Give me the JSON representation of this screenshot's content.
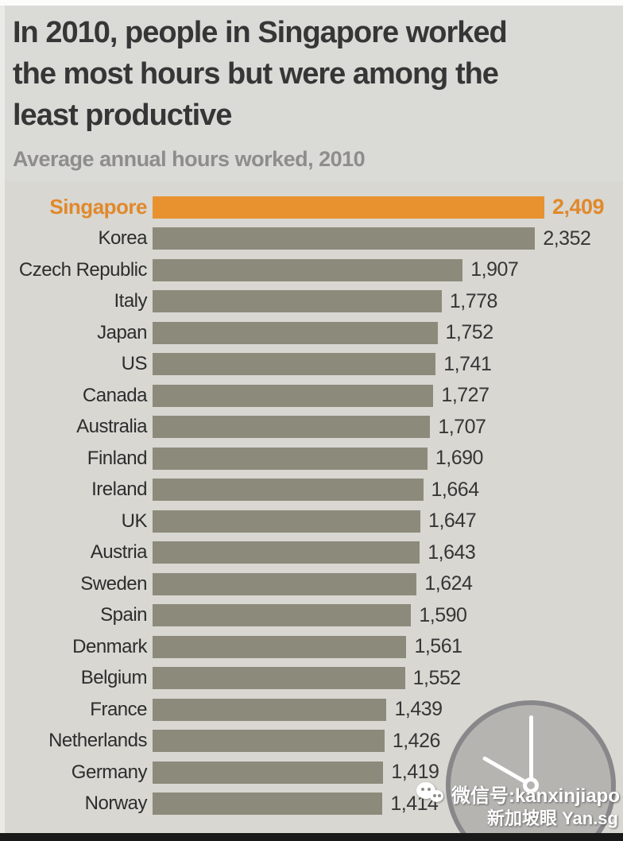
{
  "header": {
    "title_lines": [
      "In 2010, people in Singapore worked",
      "the most hours but were among the",
      "least productive"
    ],
    "subtitle": "Average annual hours worked, 2010"
  },
  "chart_data": {
    "type": "bar",
    "orientation": "horizontal",
    "title": "In 2010, people in Singapore worked the most hours but were among the least productive",
    "subtitle": "Average annual hours worked, 2010",
    "categories": [
      "Singapore",
      "Korea",
      "Czech Republic",
      "Italy",
      "Japan",
      "US",
      "Canada",
      "Australia",
      "Finland",
      "Ireland",
      "UK",
      "Austria",
      "Sweden",
      "Spain",
      "Denmark",
      "Belgium",
      "France",
      "Netherlands",
      "Germany",
      "Norway"
    ],
    "values": [
      2409,
      2352,
      1907,
      1778,
      1752,
      1741,
      1727,
      1707,
      1690,
      1664,
      1647,
      1643,
      1624,
      1590,
      1561,
      1552,
      1439,
      1426,
      1419,
      1414
    ],
    "value_labels": [
      "2,409",
      "2,352",
      "1,907",
      "1,778",
      "1,752",
      "1,741",
      "1,727",
      "1,707",
      "1,690",
      "1,664",
      "1,647",
      "1,643",
      "1,624",
      "1,590",
      "1,561",
      "1,552",
      "1,439",
      "1,426",
      "1,419",
      "1,414"
    ],
    "xlim": [
      0,
      2409
    ],
    "highlight_category": "Singapore",
    "highlight_color": "#e8912f",
    "bar_color": "#8c8b7b",
    "highlight_text_color": "#e1892b",
    "grid": false,
    "legend": false
  },
  "clock": {
    "time_shown": "10:00"
  },
  "watermark": {
    "line1": "微信号:kanxinjiapo",
    "line2": "新加坡眼 Yan.sg"
  }
}
